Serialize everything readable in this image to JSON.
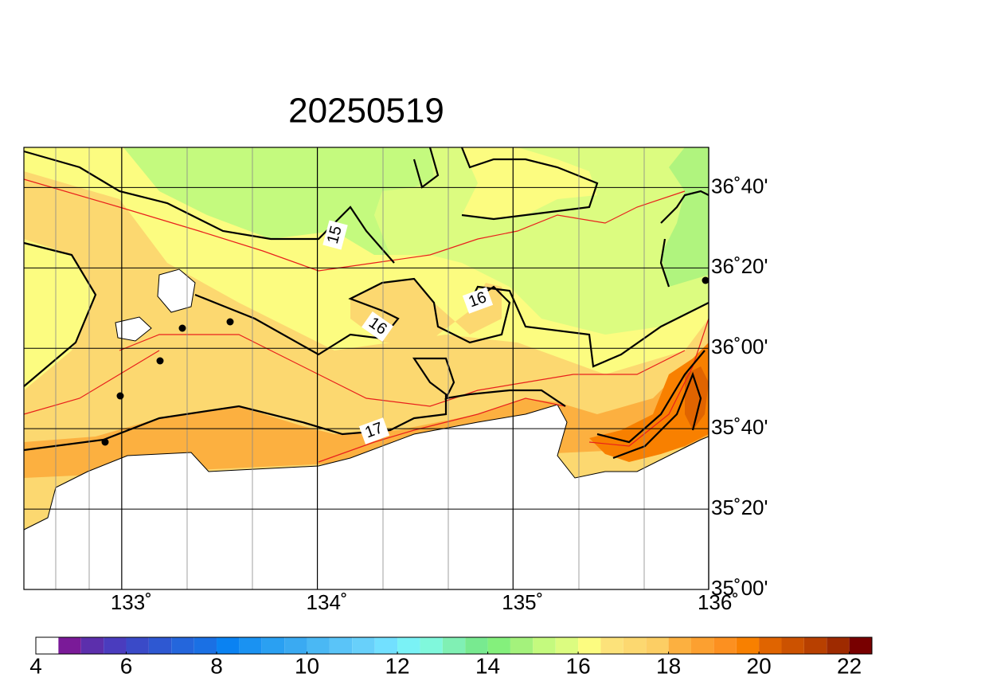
{
  "title": "20250519",
  "map": {
    "xlim": [
      132.5,
      136
    ],
    "ylim": [
      35,
      36.8333
    ],
    "lon_ticks": [
      {
        "value": 133,
        "label": "133˚"
      },
      {
        "value": 134,
        "label": "134˚"
      },
      {
        "value": 135,
        "label": "135˚"
      },
      {
        "value": 136,
        "label": "136˚"
      }
    ],
    "lat_ticks": [
      {
        "value": 35,
        "label": "35˚00'"
      },
      {
        "value": 35.3333,
        "label": "35˚20'"
      },
      {
        "value": 35.6667,
        "label": "35˚40'"
      },
      {
        "value": 36,
        "label": "36˚00'"
      },
      {
        "value": 36.3333,
        "label": "36˚20'"
      },
      {
        "value": 36.6667,
        "label": "36˚40'"
      }
    ],
    "contour_labels": [
      15,
      16,
      16,
      17
    ]
  },
  "colorbar": {
    "lim": [
      4,
      22.5
    ],
    "ticks": [
      4,
      6,
      8,
      10,
      12,
      14,
      16,
      18,
      20,
      22
    ],
    "colors": [
      "#ffffff",
      "#7a1a98",
      "#5c2fac",
      "#4a3cbe",
      "#3a4ac8",
      "#2e58d2",
      "#2466dc",
      "#1a70e4",
      "#0a82f2",
      "#1a92f2",
      "#2aa0f2",
      "#3aaaf2",
      "#4ab8f4",
      "#5ac4f8",
      "#68d0fa",
      "#72e0ff",
      "#7af2f6",
      "#80f8dc",
      "#80f0b4",
      "#78ea90",
      "#84f07c",
      "#a4f27c",
      "#c4fa7e",
      "#dcfc80",
      "#fcfc80",
      "#fce27a",
      "#fcd870",
      "#fcce64",
      "#fcb040",
      "#fca030",
      "#fc9020",
      "#f88000",
      "#e06400",
      "#cc5200",
      "#b84000",
      "#9e2a00",
      "#780000"
    ]
  }
}
